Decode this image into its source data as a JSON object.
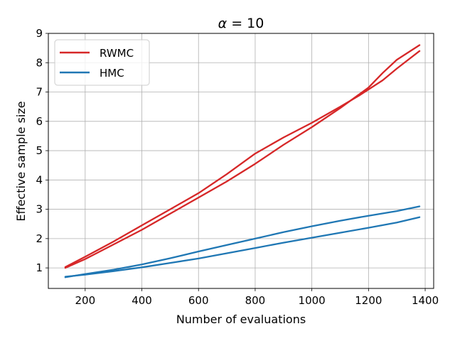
{
  "chart_data": {
    "type": "line",
    "title_prefix": "α",
    "title_suffix": " = 10",
    "xlabel": "Number of evaluations",
    "ylabel": "Effective sample size",
    "xlim": [
      70,
      1430
    ],
    "ylim": [
      0.3,
      9.0
    ],
    "xticks": [
      200,
      400,
      600,
      800,
      1000,
      1200,
      1400
    ],
    "yticks": [
      1,
      2,
      3,
      4,
      5,
      6,
      7,
      8,
      9
    ],
    "grid": true,
    "legend_position": "top-left",
    "legend": [
      {
        "label": "RWMC",
        "color": "#d62728"
      },
      {
        "label": "HMC",
        "color": "#1f77b4"
      }
    ],
    "series": [
      {
        "name": "RWMC",
        "color": "#d62728",
        "x": [
          130,
          200,
          300,
          400,
          500,
          600,
          700,
          800,
          900,
          1000,
          1100,
          1200,
          1250,
          1300,
          1380
        ],
        "y": [
          1.0,
          1.3,
          1.8,
          2.3,
          2.85,
          3.4,
          3.95,
          4.55,
          5.2,
          5.8,
          6.45,
          7.15,
          7.65,
          8.1,
          8.6
        ]
      },
      {
        "name": "RWMC",
        "color": "#d62728",
        "x": [
          130,
          200,
          300,
          400,
          500,
          600,
          700,
          800,
          900,
          1000,
          1100,
          1170,
          1250,
          1300,
          1380
        ],
        "y": [
          1.03,
          1.38,
          1.9,
          2.45,
          3.0,
          3.55,
          4.2,
          4.9,
          5.45,
          5.95,
          6.5,
          6.9,
          7.4,
          7.8,
          8.4
        ]
      },
      {
        "name": "HMC",
        "color": "#1f77b4",
        "x": [
          130,
          200,
          300,
          400,
          500,
          600,
          700,
          800,
          900,
          1000,
          1100,
          1200,
          1300,
          1380
        ],
        "y": [
          0.68,
          0.79,
          0.94,
          1.12,
          1.33,
          1.56,
          1.78,
          2.0,
          2.22,
          2.42,
          2.61,
          2.78,
          2.94,
          3.1
        ]
      },
      {
        "name": "HMC",
        "color": "#1f77b4",
        "x": [
          130,
          200,
          300,
          400,
          500,
          600,
          700,
          800,
          900,
          1000,
          1100,
          1200,
          1300,
          1380
        ],
        "y": [
          0.7,
          0.77,
          0.89,
          1.02,
          1.17,
          1.32,
          1.5,
          1.68,
          1.86,
          2.03,
          2.2,
          2.37,
          2.55,
          2.73
        ]
      }
    ]
  }
}
